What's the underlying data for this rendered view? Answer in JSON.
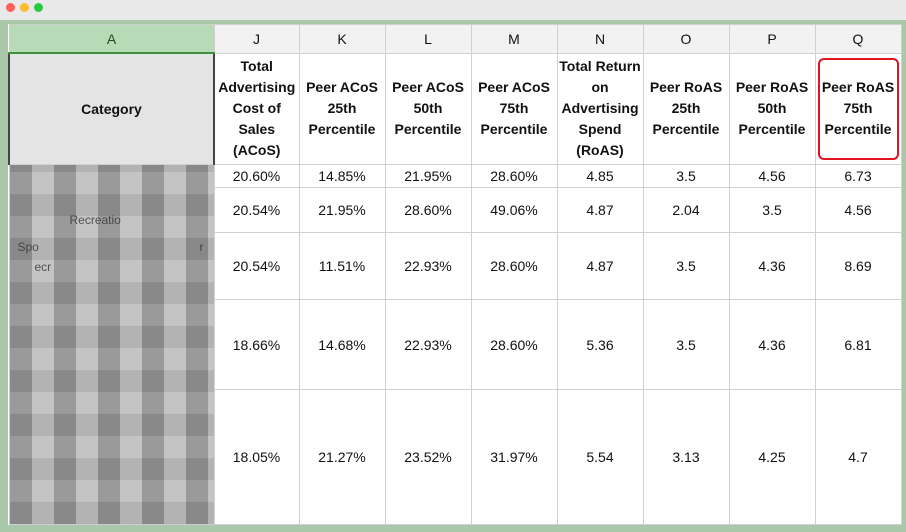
{
  "sheet": {
    "columns": [
      "A",
      "J",
      "K",
      "L",
      "M",
      "N",
      "O",
      "P",
      "Q"
    ],
    "headers": [
      "Category",
      "Total Advertising Cost of Sales (ACoS)",
      "Peer ACoS 25th Percentile",
      "Peer ACoS 50th Percentile",
      "Peer ACoS 75th Percentile",
      "Total Return on Advertising Spend (RoAS)",
      "Peer RoAS 25th Percentile",
      "Peer RoAS 50th Percentile",
      "Peer RoAS 75th Percentile"
    ],
    "rows": [
      [
        "20.60%",
        "14.85%",
        "21.95%",
        "28.60%",
        "4.85",
        "3.5",
        "4.56",
        "6.73"
      ],
      [
        "20.54%",
        "21.95%",
        "28.60%",
        "49.06%",
        "4.87",
        "2.04",
        "3.5",
        "4.56"
      ],
      [
        "20.54%",
        "11.51%",
        "22.93%",
        "28.60%",
        "4.87",
        "3.5",
        "4.36",
        "8.69"
      ],
      [
        "18.66%",
        "14.68%",
        "22.93%",
        "28.60%",
        "5.36",
        "3.5",
        "4.36",
        "6.81"
      ],
      [
        "18.05%",
        "21.27%",
        "23.52%",
        "31.97%",
        "5.54",
        "3.13",
        "4.25",
        "4.7"
      ]
    ],
    "obscured_fragments": [
      "Recreatio",
      "Spo",
      "r",
      "ecr"
    ]
  },
  "colors": {
    "highlight": "#e0141e",
    "selected_column": "#b6dbb6",
    "frame": "#a9c7a9"
  }
}
